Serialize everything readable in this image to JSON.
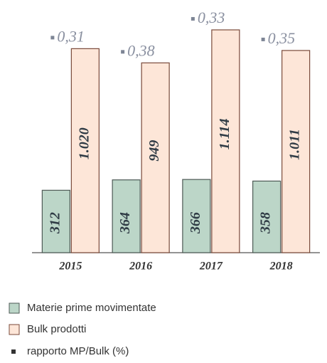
{
  "chart_data": {
    "type": "bar",
    "categories": [
      "2015",
      "2016",
      "2017",
      "2018"
    ],
    "series": [
      {
        "name": "Materie prime movimentate",
        "color": "#bcd6c8",
        "values": [
          312,
          364,
          366,
          358
        ]
      },
      {
        "name": "Bulk prodotti",
        "color": "#fde6d8",
        "values": [
          1020,
          949,
          1114,
          1011
        ],
        "value_labels": [
          "1.020",
          "949",
          "1.114",
          "1.011"
        ]
      },
      {
        "name": "rapporto MP/Bulk (%)",
        "color": "#7d8595",
        "type": "marker",
        "values": [
          0.31,
          0.38,
          0.33,
          0.35
        ],
        "value_labels": [
          "0,31",
          "0,38",
          "0,33",
          "0,35"
        ]
      }
    ]
  }
}
